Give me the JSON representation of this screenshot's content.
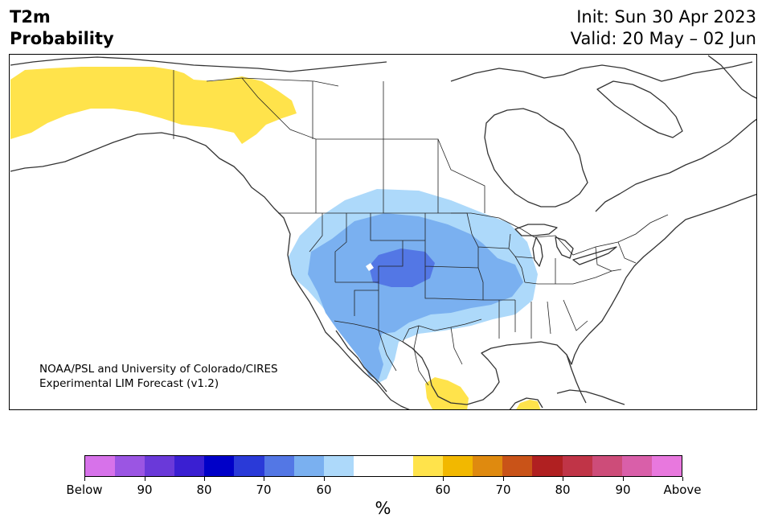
{
  "header": {
    "title_line1": "T2m",
    "title_line2": "Probability",
    "init": "Init: Sun 30 Apr 2023",
    "valid": "Valid: 20 May – 02 Jun"
  },
  "credit": {
    "line1": "NOAA/PSL and University of Colorado/CIRES",
    "line2": "Experimental LIM Forecast (v1.2)"
  },
  "colorbar": {
    "colors": [
      "#d772ea",
      "#9b55e3",
      "#6a39d9",
      "#3a1fd2",
      "#0000c8",
      "#2a3ad8",
      "#5377e5",
      "#7ab0f0",
      "#add9fa",
      "#ffffff",
      "#ffffff",
      "#ffe34b",
      "#f2b800",
      "#df8a0f",
      "#c95318",
      "#b02021",
      "#c03447",
      "#cd4c79",
      "#d95fa9",
      "#e878de"
    ],
    "tick_labels": [
      "Below",
      "90",
      "80",
      "70",
      "60",
      "60",
      "70",
      "80",
      "90",
      "Above"
    ],
    "unit": "%"
  },
  "map": {
    "region": "North America",
    "shading": [
      {
        "category": "below",
        "level": "50-60",
        "color": "#add9fa",
        "area": "western and central United States"
      },
      {
        "category": "below",
        "level": "60-70",
        "color": "#7ab0f0",
        "area": "Southwest, Rockies and central Plains"
      },
      {
        "category": "below",
        "level": "70-80",
        "color": "#5377e5",
        "area": "Colorado and Utah"
      },
      {
        "category": "above",
        "level": "50-60",
        "color": "#ffe34b",
        "area": "Alaska and Yukon"
      },
      {
        "category": "above",
        "level": "50-60",
        "color": "#ffe34b",
        "area": "eastern Mexico"
      },
      {
        "category": "above",
        "level": "50-60",
        "color": "#ffe34b",
        "area": "Yucatan"
      }
    ]
  }
}
